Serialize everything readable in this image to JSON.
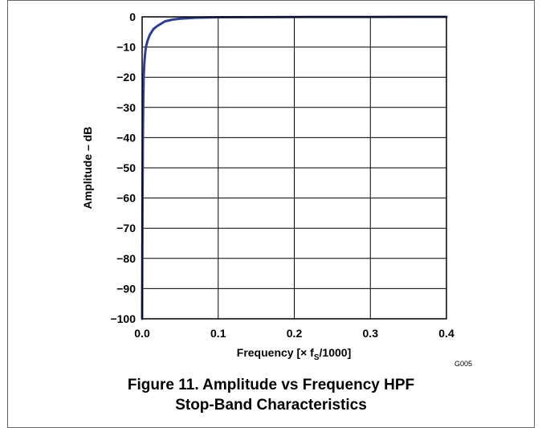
{
  "chart_data": {
    "type": "line",
    "xlabel_main": "Frequency  [× f",
    "xlabel_sub": "S",
    "xlabel_tail": "/1000]",
    "ylabel": "Amplitude – dB",
    "xlim": [
      0,
      0.4
    ],
    "ylim": [
      -100,
      0
    ],
    "grid": true,
    "x_ticks": [
      0.0,
      0.1,
      0.2,
      0.3,
      0.4
    ],
    "x_tick_labels": [
      "0.0",
      "0.1",
      "0.2",
      "0.3",
      "0.4"
    ],
    "y_ticks": [
      0,
      -10,
      -20,
      -30,
      -40,
      -50,
      -60,
      -70,
      -80,
      -90,
      -100
    ],
    "y_tick_labels": [
      "0",
      "−10",
      "−20",
      "−30",
      "−40",
      "−50",
      "−60",
      "−70",
      "−80",
      "−90",
      "−100"
    ],
    "series": [
      {
        "color": "#2e3f94",
        "x": [
          0.0,
          0.0005,
          0.001,
          0.0015,
          0.002,
          0.003,
          0.004,
          0.005,
          0.007,
          0.01,
          0.015,
          0.02,
          0.03,
          0.04,
          0.05,
          0.07,
          0.1,
          0.2,
          0.3,
          0.4
        ],
        "y": [
          -100,
          -60,
          -40,
          -28,
          -20,
          -15,
          -12,
          -10,
          -8,
          -6,
          -4,
          -3,
          -1.5,
          -0.9,
          -0.6,
          -0.3,
          -0.15,
          -0.05,
          -0.02,
          -0.01
        ]
      }
    ]
  },
  "figure_code": "G005",
  "caption": {
    "line1": "Figure 11. Amplitude vs Frequency HPF",
    "line2": "Stop-Band Characteristics"
  },
  "colors": {
    "border": "#666666",
    "grid": "#000000",
    "curve": "#2e3f94"
  }
}
